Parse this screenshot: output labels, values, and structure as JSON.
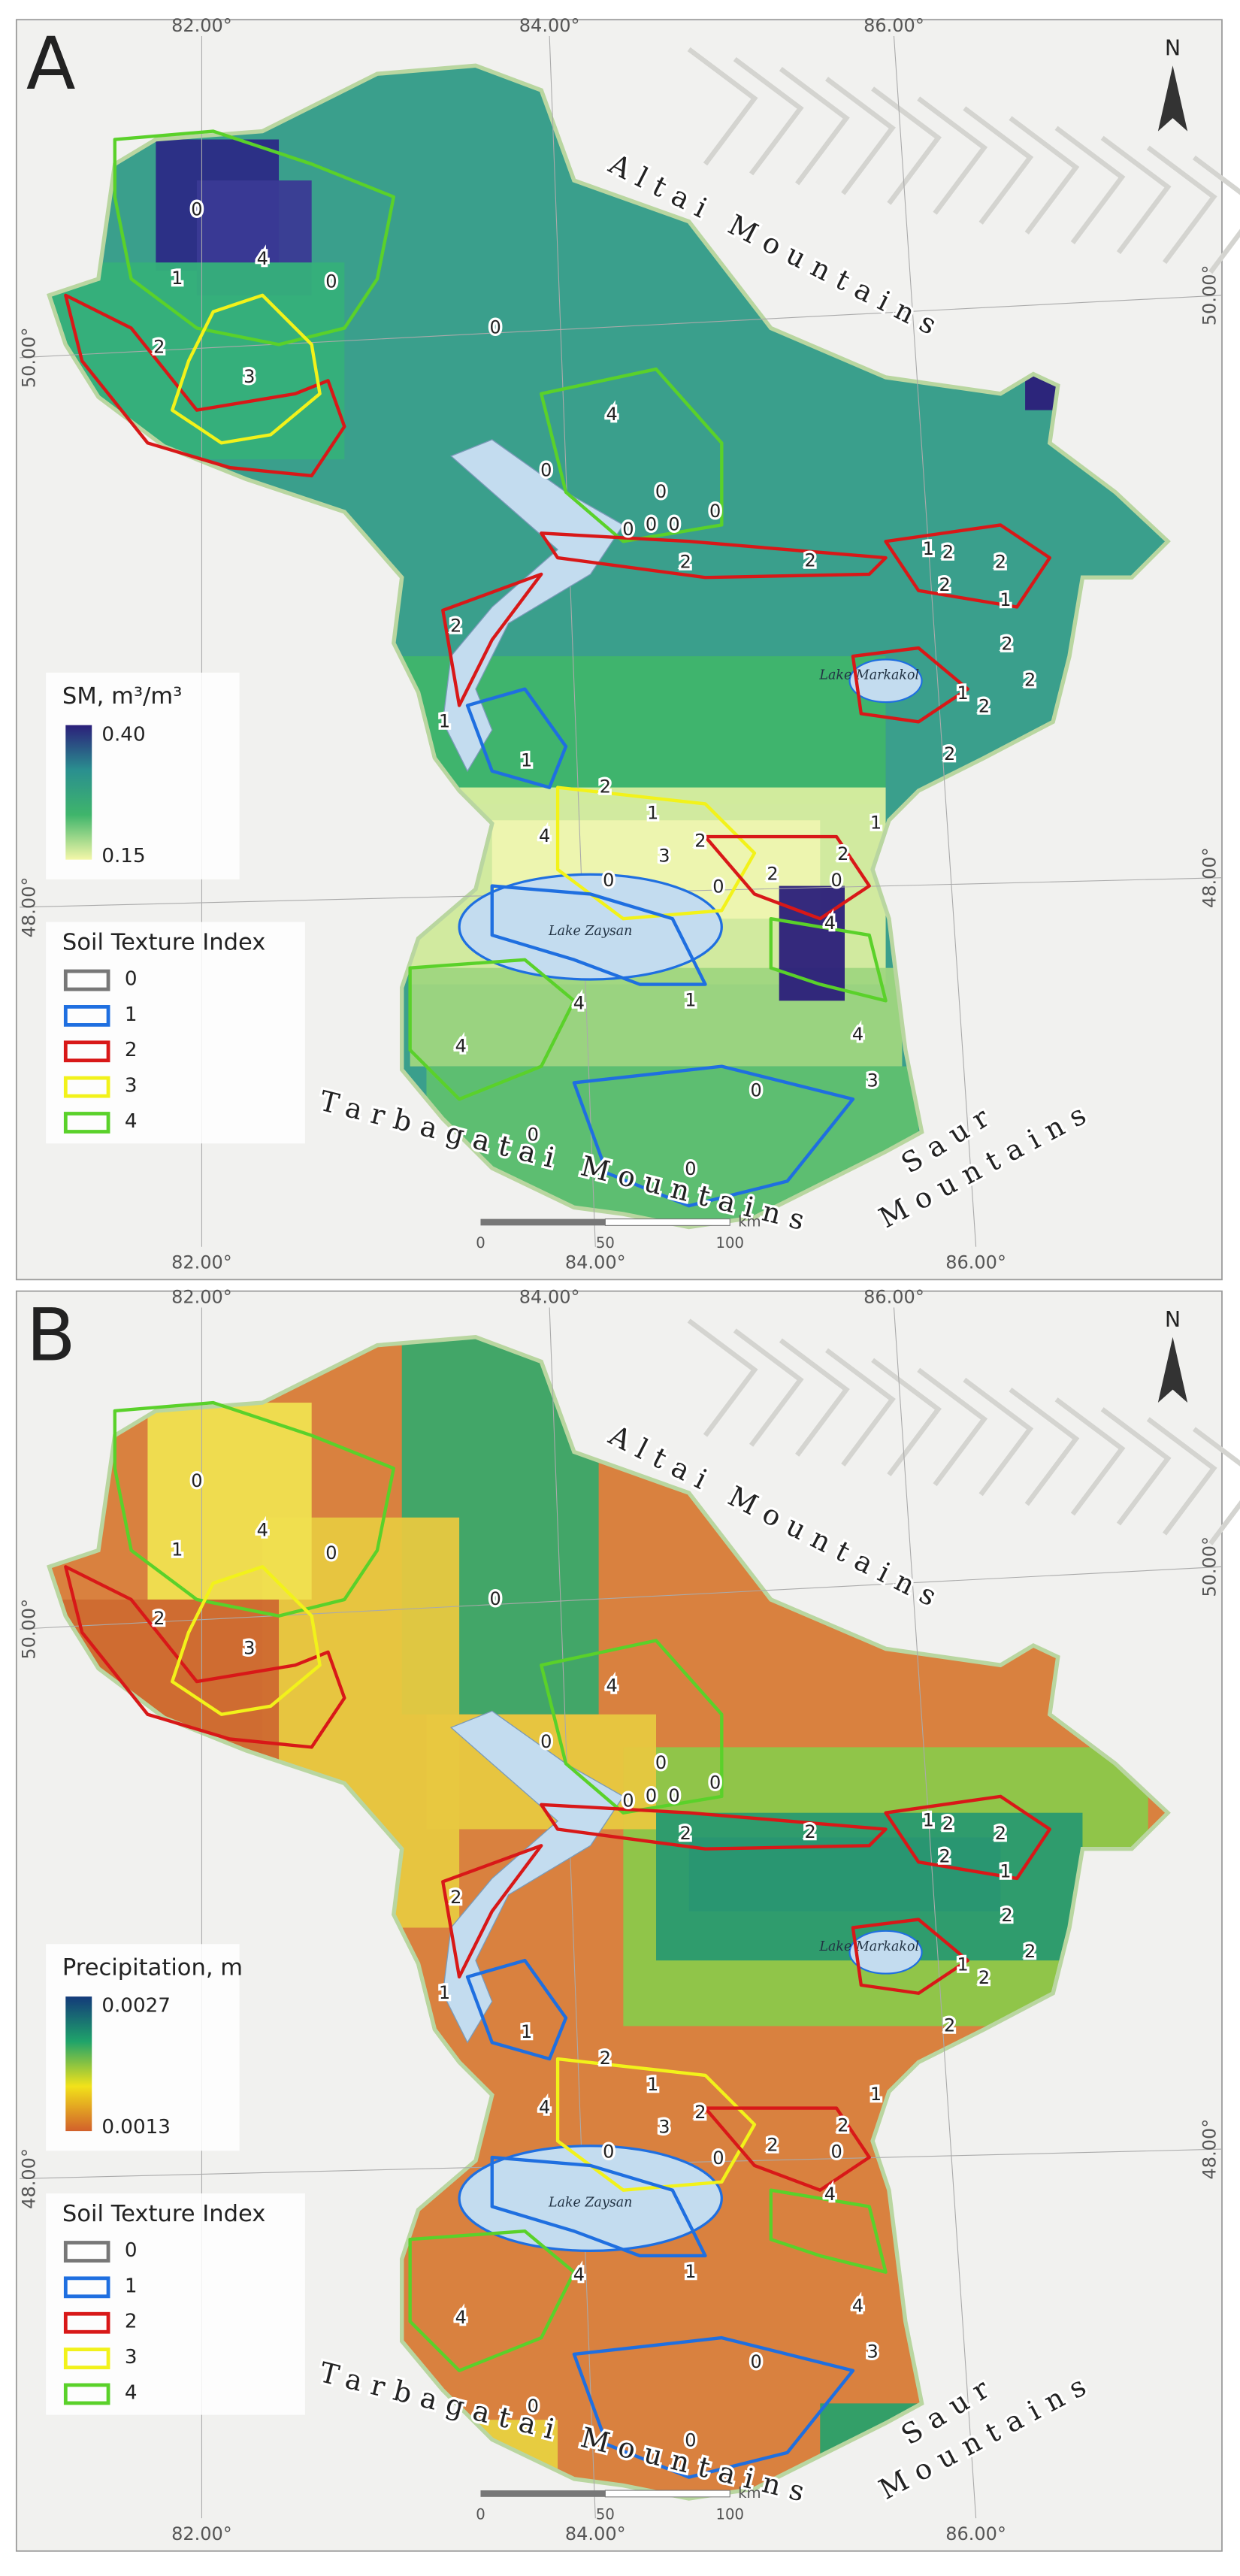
{
  "panels": [
    {
      "label": "A",
      "legend_title": "SM, m³/m³",
      "legend_max": "0.40",
      "legend_min": "0.15",
      "colormap": [
        "#2b1f7a",
        "#2a8f8f",
        "#3fb56b",
        "#f4f7a8"
      ]
    },
    {
      "label": "B",
      "legend_title": "Precipitation, m",
      "legend_max": "0.0027",
      "legend_min": "0.0013",
      "colormap": [
        "#133a7a",
        "#1fa36a",
        "#f2e21a",
        "#d2602b"
      ]
    }
  ],
  "graticule": {
    "lon_labels": [
      "82.00°",
      "84.00°",
      "86.00°"
    ],
    "lat_labels": [
      "50.00°",
      "48.00°"
    ]
  },
  "north": "N",
  "mountains": {
    "altai": "Altai Mountains",
    "tarbagatai": "Tarbagatai Mountains",
    "saur": [
      "Saur",
      "Mountains"
    ]
  },
  "lakes": {
    "markakol": "Lake Markakol",
    "zaysan": "Lake Zaysan"
  },
  "scale_bar": {
    "ticks": [
      "0",
      "50",
      "100"
    ],
    "unit": "km"
  },
  "soil_legend": {
    "title": "Soil Texture Index",
    "items": [
      {
        "label": "0",
        "color": "#777777"
      },
      {
        "label": "1",
        "color": "#1f6fe0"
      },
      {
        "label": "2",
        "color": "#d81818"
      },
      {
        "label": "3",
        "color": "#f2f21a"
      },
      {
        "label": "4",
        "color": "#5ad12a"
      }
    ]
  },
  "region_labels": [
    "0",
    "4",
    "0",
    "1",
    "2",
    "3",
    "0",
    "4",
    "0",
    "0",
    "0",
    "0",
    "0",
    "0",
    "2",
    "2",
    "1",
    "2",
    "2",
    "2",
    "1",
    "2",
    "2",
    "1",
    "2",
    "2",
    "2",
    "1",
    "1",
    "2",
    "1",
    "4",
    "3",
    "2",
    "0",
    "0",
    "2",
    "2",
    "1",
    "0",
    "4",
    "1",
    "4",
    "4",
    "4",
    "3",
    "0",
    "0",
    "0"
  ]
}
